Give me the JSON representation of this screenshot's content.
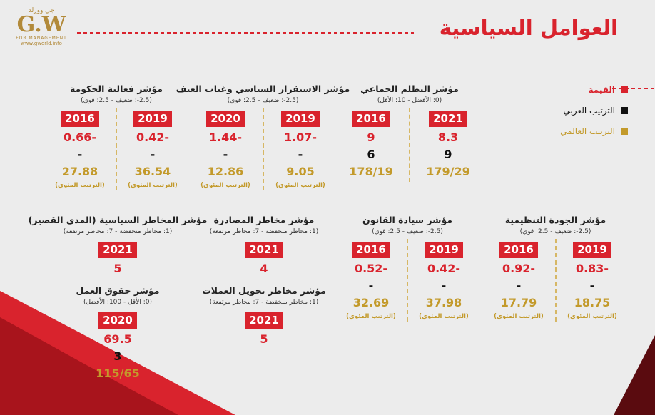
{
  "header": {
    "title": "العوامل السياسية",
    "logo": {
      "arabic": "جي وورلد",
      "mark": "G.W",
      "tagline": "FOR MANAGEMENT",
      "url": "www.gworld.info"
    }
  },
  "legend": [
    "القيمة",
    "الترتيب العربي",
    "الترتيب العالمي"
  ],
  "indicators": [
    {
      "title": "مؤشر التظلم الجماعي",
      "scale": "(0: الأفضل - 10: الأقل)",
      "columns": [
        {
          "year": 2021,
          "value": 8.3,
          "arab": 9,
          "global": "179/29"
        },
        {
          "year": 2016,
          "value": 9,
          "arab": 6,
          "global": "178/19"
        }
      ]
    },
    {
      "title": "مؤشر الاستقرار السياسي وغياب العنف",
      "scale": "(2.5-: ضعيف - 2.5: قوي)",
      "columns": [
        {
          "year": 2019,
          "value": -1.07,
          "arab": "-",
          "global": 9.05,
          "global_note": "(الترتيب المئوي)"
        },
        {
          "year": 2020,
          "value": -1.44,
          "arab": "-",
          "global": 12.86,
          "global_note": "(الترتيب المئوي)"
        }
      ]
    },
    {
      "title": "مؤشر فعالية الحكومة",
      "scale": "(2.5-: ضعيف - 2.5: قوي)",
      "columns": [
        {
          "year": 2019,
          "value": -0.42,
          "arab": "-",
          "global": 36.54,
          "global_note": "(الترتيب المئوي)"
        },
        {
          "year": 2016,
          "value": -0.66,
          "arab": "-",
          "global": 27.88,
          "global_note": "(الترتيب المئوي)"
        }
      ]
    },
    {
      "title": "مؤشر الجودة التنظيمية",
      "scale": "(2.5-: ضعيف - 2.5: قوي)",
      "columns": [
        {
          "year": 2019,
          "value": -0.83,
          "arab": "-",
          "global": 18.75,
          "global_note": "(الترتيب المئوي)"
        },
        {
          "year": 2016,
          "value": -0.92,
          "arab": "-",
          "global": 17.79,
          "global_note": "(الترتيب المئوي)"
        }
      ]
    },
    {
      "title": "مؤشر سيادة القانون",
      "scale": "(2.5-: ضعيف - 2.5: قوي)",
      "columns": [
        {
          "year": 2019,
          "value": -0.42,
          "arab": "-",
          "global": 37.98,
          "global_note": "(الترتيب المئوي)"
        },
        {
          "year": 2016,
          "value": -0.52,
          "arab": "-",
          "global": 32.69,
          "global_note": "(الترتيب المئوي)"
        }
      ]
    },
    {
      "title": "مؤشر مخاطر المصادرة",
      "scale": "(1: مخاطر منخفضة - 7: مخاطر مرتفعة)",
      "columns": [
        {
          "year": 2021,
          "value": 4
        }
      ]
    },
    {
      "title": "مؤشر المخاطر السياسية (المدى القصير)",
      "scale": "(1: مخاطر منخفضة - 7: مخاطر مرتفعة)",
      "columns": [
        {
          "year": 2021,
          "value": 5
        }
      ]
    },
    {
      "title": "مؤشر مخاطر تحويل العملات",
      "scale": "(1: مخاطر منخفضة - 7: مخاطر مرتفعة)",
      "columns": [
        {
          "year": 2021,
          "value": 5
        }
      ]
    },
    {
      "title": "مؤشر حقوق العمل",
      "scale": "(0: الأقل - 100: الأفضل)",
      "columns": [
        {
          "year": 2020,
          "value": 69.5,
          "arab": 3,
          "global": "115/65"
        }
      ]
    }
  ]
}
